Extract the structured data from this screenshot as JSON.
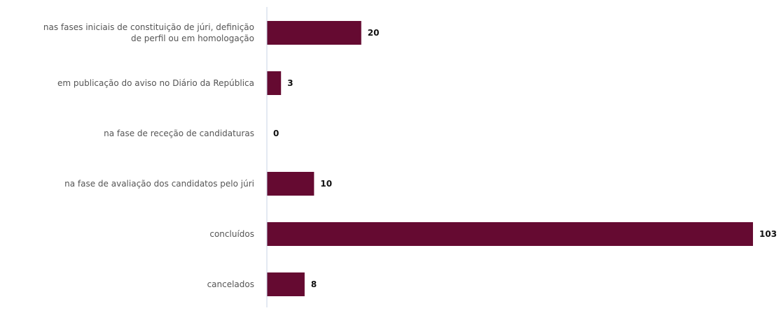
{
  "colors": {
    "bar": "#650a31",
    "axis": "#c8d3e6",
    "label": "#555555",
    "value": "#111111"
  },
  "chart_data": {
    "type": "bar",
    "orientation": "horizontal",
    "title": "",
    "xlabel": "",
    "ylabel": "",
    "categories": [
      [
        "nas fases iniciais de constituição de júri, definição",
        "de perfil ou em homologação"
      ],
      [
        "em publicação do aviso no Diário da República"
      ],
      [
        "na fase de receção de candidaturas"
      ],
      [
        "na fase de avaliação dos candidatos pelo júri"
      ],
      [
        "concluídos"
      ],
      [
        "cancelados"
      ]
    ],
    "values": [
      20,
      3,
      0,
      10,
      103,
      8
    ],
    "xlim": [
      0,
      103
    ],
    "grid": false,
    "legend": "none",
    "data_labels": true
  }
}
